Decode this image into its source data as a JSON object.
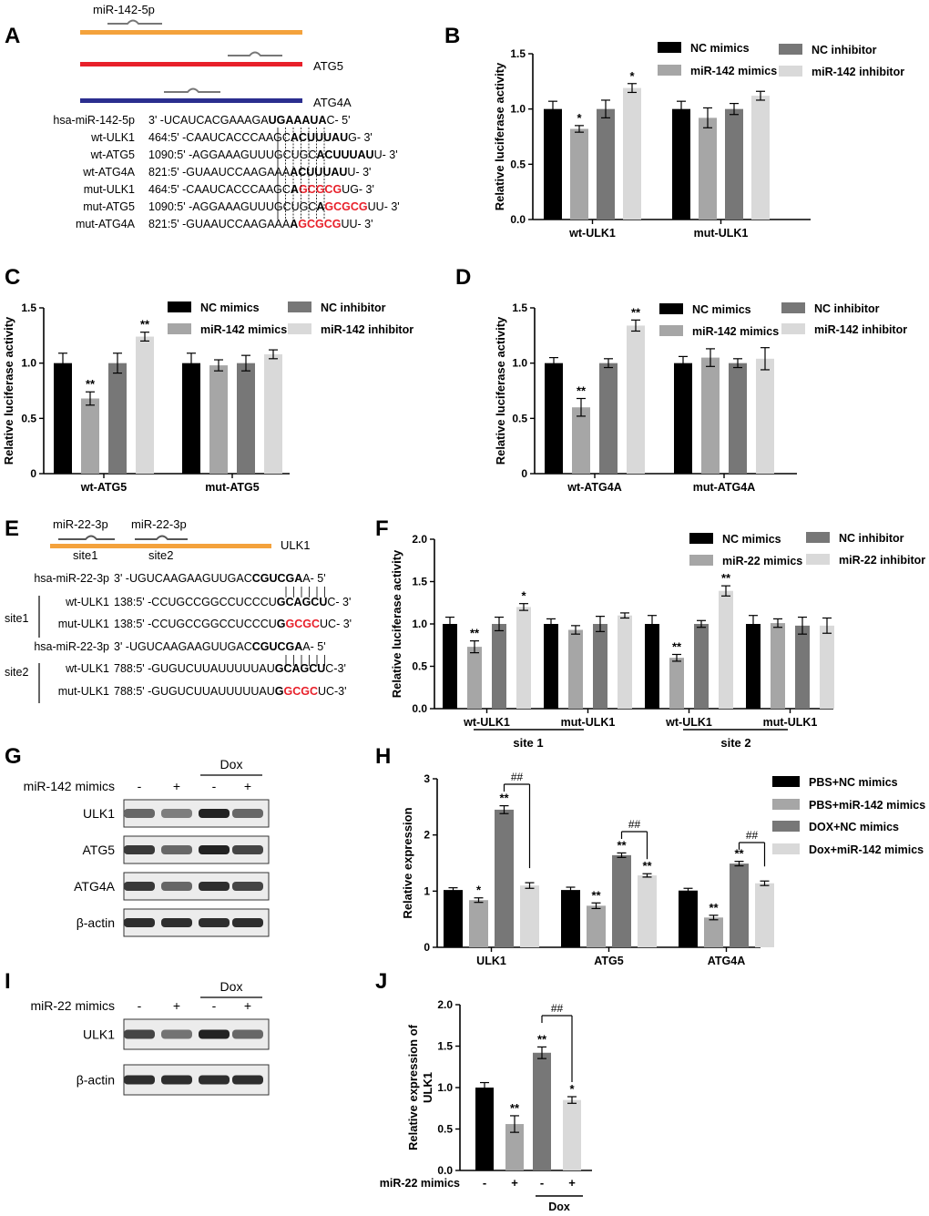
{
  "panel_letters": {
    "A": "A",
    "B": "B",
    "C": "C",
    "D": "D",
    "E": "E",
    "F": "F",
    "G": "G",
    "H": "H",
    "I": "I",
    "J": "J"
  },
  "colors": {
    "black": "#000000",
    "mid_gray": "#a6a6a6",
    "dark_gray": "#777777",
    "light_gray": "#d9d9d9",
    "orange": "#f4a23c",
    "red": "#e8202a",
    "navy": "#2b2e8f",
    "mut_red": "#e8202a"
  },
  "panelA": {
    "mirna_label": "miR-142-5p",
    "gene_labels": [
      "ATG5",
      "ATG4A"
    ],
    "rows": [
      {
        "name": "hsa-miR-142-5p",
        "pre": "3' -UCAUCACGAAAGA",
        "bold": "UGAAAUA",
        "red": "",
        "post": "C- 5'"
      },
      {
        "name": "wt-ULK1",
        "pre": "464:5' -CAAUCACCCAAGC",
        "bold": "ACUUUAU",
        "red": "",
        "post": "G- 3'"
      },
      {
        "name": "wt-ATG5",
        "pre": "1090:5' -AGGAAAGUUUGCUGC",
        "bold": "ACUUUAU",
        "red": "",
        "post": "U- 3'"
      },
      {
        "name": "wt-ATG4A",
        "pre": "821:5' -GUAAUCCAAGAAA",
        "bold": "ACUUUAU",
        "red": "",
        "post": "U- 3'"
      },
      {
        "name": "mut-ULK1",
        "pre": "464:5' -CAAUCACCCAAGC",
        "bold": "A",
        "red": "GCGCG",
        "post": "UG- 3'"
      },
      {
        "name": "mut-ATG5",
        "pre": "1090:5' -AGGAAAGUUUGCUGC",
        "bold": "A",
        "red": "GCGCG",
        "post": "UU- 3'"
      },
      {
        "name": "mut-ATG4A",
        "pre": "821:5' -GUAAUCCAAGAAA",
        "bold": "A",
        "red": "GCGCG",
        "post": "UU- 3'"
      }
    ]
  },
  "panelE": {
    "mirna_labels": [
      "miR-22-3p",
      "miR-22-3p"
    ],
    "site_labels": [
      "site1",
      "site2"
    ],
    "gene_label": "ULK1",
    "site_side_labels": [
      "site1",
      "site2"
    ],
    "rows": [
      {
        "name": "hsa-miR-22-3p",
        "pre": "3' -UGUCAAGAAGUUGAC",
        "bold": "CGUCGA",
        "red": "",
        "post": "A- 5'"
      },
      {
        "name": "wt-ULK1",
        "pre": "138:5' -CCUGCCGGCCUCCCU",
        "bold": "GCAGCU",
        "red": "",
        "post": "C- 3'"
      },
      {
        "name": "mut-ULK1",
        "pre": "138:5' -CCUGCCGGCCUCCCU",
        "bold": "G",
        "red": "GCGC",
        "post": "UC- 3'"
      },
      {
        "name": "hsa-miR-22-3p",
        "pre": "3' -UGUCAAGAAGUUGAC",
        "bold": "CGUCGA",
        "red": "",
        "post": "A- 5'"
      },
      {
        "name": "wt-ULK1",
        "pre": "788:5' -GUGUCUUAUUUUUAU",
        "bold": "GCAGCU",
        "red": "",
        "post": "C-3'"
      },
      {
        "name": "mut-ULK1",
        "pre": "788:5' -GUGUCUUAUUUUUAU",
        "bold": "G",
        "red": "GCGC",
        "post": "UC-3'"
      }
    ]
  },
  "blotG": {
    "header_label": "miR-142 mimics",
    "treatment": "Dox",
    "signs": [
      "-",
      "+",
      "-",
      "+"
    ],
    "bands": [
      "ULK1",
      "ATG5",
      "ATG4A",
      "β-actin"
    ],
    "intensity": [
      [
        0.55,
        0.45,
        0.85,
        0.55
      ],
      [
        0.75,
        0.55,
        0.85,
        0.7
      ],
      [
        0.75,
        0.55,
        0.8,
        0.7
      ],
      [
        0.8,
        0.8,
        0.8,
        0.8
      ]
    ]
  },
  "blotI": {
    "header_label": "miR-22 mimics",
    "treatment": "Dox",
    "signs": [
      "-",
      "+",
      "-",
      "+"
    ],
    "bands": [
      "ULK1",
      "β-actin"
    ],
    "intensity": [
      [
        0.7,
        0.5,
        0.85,
        0.55
      ],
      [
        0.8,
        0.8,
        0.8,
        0.8
      ]
    ]
  },
  "chart_data": [
    {
      "panel": "B",
      "type": "bar",
      "ylabel": "Relative luciferase activity",
      "ylim": [
        0,
        1.5
      ],
      "yticks": [
        "0.0",
        "0.5",
        "1.0",
        "1.5"
      ],
      "categories": [
        "wt-ULK1",
        "mut-ULK1"
      ],
      "legend": [
        "NC mimics",
        "miR-142 mimics",
        "NC inhibitor",
        "miR-142 inhibitor"
      ],
      "series": [
        {
          "name": "NC mimics",
          "values": [
            1.0,
            1.0
          ],
          "err": [
            0.07,
            0.07
          ],
          "sig": [
            "",
            ""
          ]
        },
        {
          "name": "miR-142 mimics",
          "values": [
            0.82,
            0.92
          ],
          "err": [
            0.03,
            0.09
          ],
          "sig": [
            "*",
            ""
          ]
        },
        {
          "name": "NC inhibitor",
          "values": [
            1.0,
            1.0
          ],
          "err": [
            0.08,
            0.05
          ],
          "sig": [
            "",
            ""
          ]
        },
        {
          "name": "miR-142 inhibitor",
          "values": [
            1.19,
            1.12
          ],
          "err": [
            0.04,
            0.04
          ],
          "sig": [
            "*",
            ""
          ]
        }
      ]
    },
    {
      "panel": "C",
      "type": "bar",
      "ylabel": "Relative luciferase activity",
      "ylim": [
        0,
        1.5
      ],
      "yticks": [
        "0",
        "0.5",
        "1.0",
        "1.5"
      ],
      "categories": [
        "wt-ATG5",
        "mut-ATG5"
      ],
      "legend": [
        "NC mimics",
        "miR-142 mimics",
        "NC inhibitor",
        "miR-142 inhibitor"
      ],
      "series": [
        {
          "name": "NC mimics",
          "values": [
            1.0,
            1.0
          ],
          "err": [
            0.09,
            0.09
          ],
          "sig": [
            "",
            ""
          ]
        },
        {
          "name": "miR-142 mimics",
          "values": [
            0.68,
            0.98
          ],
          "err": [
            0.06,
            0.05
          ],
          "sig": [
            "**",
            ""
          ]
        },
        {
          "name": "NC inhibitor",
          "values": [
            1.0,
            1.0
          ],
          "err": [
            0.09,
            0.07
          ],
          "sig": [
            "",
            ""
          ]
        },
        {
          "name": "miR-142 inhibitor",
          "values": [
            1.24,
            1.08
          ],
          "err": [
            0.04,
            0.04
          ],
          "sig": [
            "**",
            ""
          ]
        }
      ]
    },
    {
      "panel": "D",
      "type": "bar",
      "ylabel": "Relative luciferase activity",
      "ylim": [
        0,
        1.5
      ],
      "yticks": [
        "0",
        "0.5",
        "1.0",
        "1.5"
      ],
      "categories": [
        "wt-ATG4A",
        "mut-ATG4A"
      ],
      "legend": [
        "NC mimics",
        "miR-142 mimics",
        "NC inhibitor",
        "miR-142 inhibitor"
      ],
      "series": [
        {
          "name": "NC mimics",
          "values": [
            1.0,
            1.0
          ],
          "err": [
            0.05,
            0.06
          ],
          "sig": [
            "",
            ""
          ]
        },
        {
          "name": "miR-142 mimics",
          "values": [
            0.6,
            1.05
          ],
          "err": [
            0.08,
            0.08
          ],
          "sig": [
            "**",
            ""
          ]
        },
        {
          "name": "NC inhibitor",
          "values": [
            1.0,
            1.0
          ],
          "err": [
            0.04,
            0.04
          ],
          "sig": [
            "",
            ""
          ]
        },
        {
          "name": "miR-142 inhibitor",
          "values": [
            1.34,
            1.04
          ],
          "err": [
            0.05,
            0.1
          ],
          "sig": [
            "**",
            ""
          ]
        }
      ]
    },
    {
      "panel": "F",
      "type": "bar",
      "ylabel": "Relative luciferase activity",
      "ylim": [
        0,
        2.0
      ],
      "yticks": [
        "0.0",
        "0.5",
        "1.0",
        "1.5",
        "2.0"
      ],
      "categories": [
        "wt-ULK1",
        "mut-ULK1",
        "wt-ULK1",
        "mut-ULK1"
      ],
      "groups": [
        "site 1",
        "site 2"
      ],
      "legend": [
        "NC mimics",
        "miR-22 mimics",
        "NC inhibitor",
        "miR-22 inhibitor"
      ],
      "series": [
        {
          "name": "NC mimics",
          "values": [
            1.0,
            1.0,
            1.0,
            1.0
          ],
          "err": [
            0.08,
            0.06,
            0.1,
            0.1
          ],
          "sig": [
            "",
            "",
            "",
            ""
          ]
        },
        {
          "name": "miR-22 mimics",
          "values": [
            0.73,
            0.93,
            0.6,
            1.01
          ],
          "err": [
            0.07,
            0.05,
            0.04,
            0.05
          ],
          "sig": [
            "**",
            "",
            "**",
            ""
          ]
        },
        {
          "name": "NC inhibitor",
          "values": [
            1.0,
            1.0,
            1.0,
            0.98
          ],
          "err": [
            0.08,
            0.09,
            0.04,
            0.1
          ],
          "sig": [
            "",
            "",
            "",
            ""
          ]
        },
        {
          "name": "miR-22 inhibitor",
          "values": [
            1.2,
            1.1,
            1.39,
            0.98
          ],
          "err": [
            0.04,
            0.03,
            0.06,
            0.09
          ],
          "sig": [
            "*",
            "",
            "**",
            ""
          ]
        }
      ]
    },
    {
      "panel": "H",
      "type": "bar",
      "ylabel": "Relative expression",
      "ylim": [
        0,
        3
      ],
      "yticks": [
        "0",
        "1",
        "2",
        "3"
      ],
      "categories": [
        "ULK1",
        "ATG5",
        "ATG4A"
      ],
      "legend": [
        "PBS+NC mimics",
        "PBS+miR-142 mimics",
        "DOX+NC mimics",
        "Dox+miR-142 mimics"
      ],
      "hash": "##",
      "series": [
        {
          "name": "PBS+NC mimics",
          "values": [
            1.02,
            1.02,
            1.01
          ],
          "err": [
            0.04,
            0.05,
            0.04
          ],
          "sig": [
            "",
            "",
            ""
          ]
        },
        {
          "name": "PBS+miR-142 mimics",
          "values": [
            0.84,
            0.74,
            0.53
          ],
          "err": [
            0.04,
            0.05,
            0.04
          ],
          "sig": [
            "*",
            "**",
            "**"
          ]
        },
        {
          "name": "DOX+NC mimics",
          "values": [
            2.45,
            1.64,
            1.49
          ],
          "err": [
            0.07,
            0.04,
            0.04
          ],
          "sig": [
            "**",
            "**",
            "**"
          ]
        },
        {
          "name": "Dox+miR-142 mimics",
          "values": [
            1.1,
            1.28,
            1.14
          ],
          "err": [
            0.05,
            0.03,
            0.04
          ],
          "sig": [
            "",
            "**",
            ""
          ]
        }
      ]
    },
    {
      "panel": "J",
      "type": "bar",
      "ylabel": "Relative expression of ULK1",
      "ylim": [
        0,
        2.0
      ],
      "yticks": [
        "0.0",
        "0.5",
        "1.0",
        "1.5",
        "2.0"
      ],
      "xrow_label": "miR-22 mimics",
      "signs": [
        "-",
        "+",
        "-",
        "+"
      ],
      "group_label": "Dox",
      "hash": "##",
      "series": [
        {
          "name": "bars",
          "values": [
            1.0,
            0.56,
            1.42,
            0.85
          ],
          "err": [
            0.06,
            0.1,
            0.07,
            0.04
          ],
          "sig": [
            "",
            "**",
            "**",
            "*"
          ]
        }
      ]
    }
  ]
}
